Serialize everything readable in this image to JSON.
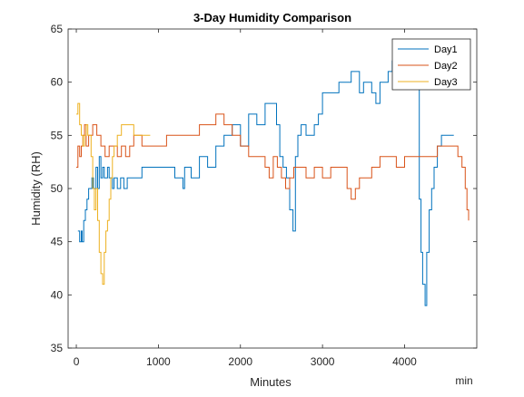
{
  "chart_data": {
    "type": "line",
    "title": "3-Day Humidity Comparison",
    "xlabel": "Minutes",
    "ylabel": "Humidity (RH)",
    "x_unit_label": "min",
    "xlim": [
      -100,
      4880
    ],
    "ylim": [
      35,
      65
    ],
    "xticks": [
      0,
      1000,
      2000,
      3000,
      4000
    ],
    "yticks": [
      35,
      40,
      45,
      50,
      55,
      60,
      65
    ],
    "xtick_labels": [
      "0",
      "1000",
      "2000",
      "3000",
      "4000"
    ],
    "ytick_labels": [
      "35",
      "40",
      "45",
      "50",
      "55",
      "60",
      "65"
    ],
    "grid": false,
    "legend_position": "top-right",
    "series": [
      {
        "name": "Day1",
        "color": "#0072BD",
        "x": [
          20,
          40,
          60,
          70,
          90,
          110,
          130,
          150,
          170,
          190,
          210,
          240,
          260,
          280,
          300,
          320,
          340,
          360,
          380,
          400,
          420,
          440,
          460,
          500,
          540,
          580,
          620,
          660,
          700,
          800,
          900,
          1000,
          1100,
          1200,
          1300,
          1320,
          1400,
          1500,
          1600,
          1700,
          1800,
          1900,
          2000,
          2100,
          2200,
          2300,
          2400,
          2440,
          2480,
          2520,
          2560,
          2600,
          2640,
          2670,
          2700,
          2740,
          2800,
          2850,
          2900,
          2950,
          3000,
          3050,
          3100,
          3150,
          3200,
          3250,
          3300,
          3350,
          3400,
          3450,
          3500,
          3550,
          3600,
          3650,
          3700,
          3750,
          3800,
          3850,
          3900,
          3950,
          4000,
          4050,
          4100,
          4150,
          4180,
          4200,
          4220,
          4250,
          4270,
          4300,
          4330,
          4360,
          4400,
          4450,
          4500,
          4550,
          4600
        ],
        "y": [
          46,
          45,
          46,
          45,
          47,
          48,
          49,
          50,
          50,
          51,
          50,
          52,
          50,
          53,
          51,
          52,
          51,
          51,
          52,
          51,
          51,
          50,
          51,
          50,
          51,
          50,
          51,
          51,
          51,
          52,
          52,
          52,
          52,
          51,
          50,
          52,
          51,
          53,
          52,
          54,
          55,
          56,
          54,
          57,
          56,
          58,
          58,
          56,
          53,
          52,
          51,
          48,
          46,
          53,
          55,
          56,
          55,
          55,
          56,
          57,
          59,
          59,
          59,
          59,
          60,
          60,
          60,
          61,
          61,
          59,
          60,
          60,
          59,
          58,
          60,
          60,
          61,
          62,
          62,
          62,
          60,
          61,
          62,
          60,
          49,
          44,
          41,
          39,
          44,
          48,
          50,
          52,
          54,
          55,
          55,
          55,
          55
        ],
        "values_note": ""
      },
      {
        "name": "Day2",
        "color": "#D95319",
        "x": [
          0,
          20,
          40,
          60,
          80,
          100,
          120,
          150,
          200,
          250,
          300,
          350,
          400,
          450,
          500,
          550,
          600,
          650,
          700,
          800,
          900,
          1000,
          1100,
          1200,
          1300,
          1400,
          1500,
          1600,
          1700,
          1800,
          1900,
          2000,
          2100,
          2200,
          2300,
          2350,
          2400,
          2450,
          2500,
          2550,
          2600,
          2650,
          2700,
          2750,
          2800,
          2900,
          3000,
          3100,
          3200,
          3300,
          3350,
          3400,
          3450,
          3500,
          3600,
          3700,
          3800,
          3900,
          4000,
          4100,
          4200,
          4300,
          4400,
          4500,
          4600,
          4650,
          4700,
          4740,
          4760,
          4780
        ],
        "y": [
          52,
          54,
          53,
          54,
          55,
          56,
          54,
          55,
          56,
          55,
          54,
          53,
          54,
          54,
          53,
          54,
          53,
          54,
          55,
          54,
          54,
          54,
          55,
          55,
          55,
          55,
          56,
          56,
          57,
          56,
          55,
          54,
          53,
          53,
          52,
          51,
          53,
          52,
          51,
          50,
          51,
          52,
          52,
          52,
          51,
          52,
          51,
          52,
          52,
          50,
          49,
          50,
          51,
          51,
          52,
          53,
          53,
          52,
          53,
          53,
          53,
          53,
          54,
          54,
          54,
          53,
          52,
          50,
          48,
          47
        ]
      },
      {
        "name": "Day3",
        "color": "#EDB120",
        "x": [
          0,
          20,
          40,
          60,
          80,
          100,
          120,
          140,
          160,
          180,
          200,
          220,
          240,
          260,
          280,
          300,
          320,
          340,
          360,
          380,
          400,
          420,
          440,
          460,
          480,
          500,
          550,
          600,
          650,
          700,
          750,
          800,
          850,
          900
        ],
        "y": [
          57,
          58,
          56,
          55,
          54,
          55,
          56,
          55,
          55,
          53,
          50,
          48,
          50,
          47,
          44,
          42,
          41,
          44,
          46,
          47,
          49,
          51,
          53,
          54,
          54,
          55,
          56,
          56,
          56,
          55,
          55,
          55,
          55,
          55
        ]
      }
    ]
  }
}
